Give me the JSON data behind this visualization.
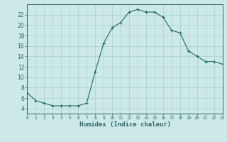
{
  "x": [
    0,
    1,
    2,
    3,
    4,
    5,
    6,
    7,
    8,
    9,
    10,
    11,
    12,
    13,
    14,
    15,
    16,
    17,
    18,
    19,
    20,
    21,
    22,
    23
  ],
  "y": [
    7,
    5.5,
    5,
    4.5,
    4.5,
    4.5,
    4.5,
    5,
    11,
    16.5,
    19.5,
    20.5,
    22.5,
    23,
    22.5,
    22.5,
    21.5,
    19,
    18.5,
    15,
    14,
    13,
    13,
    12.5
  ],
  "xlim": [
    0,
    23
  ],
  "ylim": [
    3,
    24
  ],
  "yticks": [
    4,
    6,
    8,
    10,
    12,
    14,
    16,
    18,
    20,
    22
  ],
  "xticks": [
    0,
    1,
    2,
    3,
    4,
    5,
    6,
    7,
    8,
    9,
    10,
    11,
    12,
    13,
    14,
    15,
    16,
    17,
    18,
    19,
    20,
    21,
    22,
    23
  ],
  "xlabel": "Humidex (Indice chaleur)",
  "line_color": "#1a6b5e",
  "marker": "+",
  "bg_color": "#cce8e8",
  "grid_color": "#aacfcf",
  "axis_color": "#336666"
}
